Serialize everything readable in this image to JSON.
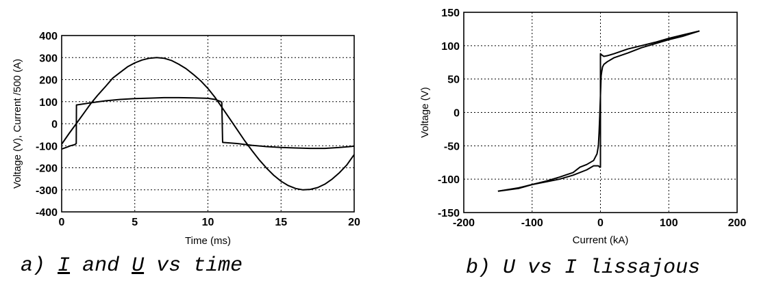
{
  "chart_data": [
    {
      "type": "line",
      "title": "",
      "caption": {
        "prefix": "a)",
        "var1": "I",
        "mid": "and",
        "var2": "U",
        "suffix": "vs time"
      },
      "xlabel": "Time (ms)",
      "ylabel": "Voltage (V), Current /500 (A)",
      "xlim": [
        0,
        20
      ],
      "ylim": [
        -400,
        400
      ],
      "xticks": [
        0,
        5,
        10,
        15,
        20
      ],
      "yticks": [
        -400,
        -300,
        -200,
        -100,
        0,
        100,
        200,
        300,
        400
      ],
      "grid": true,
      "series": [
        {
          "x": [
            0,
            0.5,
            1,
            1.5,
            2,
            2.5,
            3,
            3.5,
            4,
            4.5,
            5,
            5.5,
            6,
            6.5,
            7,
            7.5,
            8,
            8.5,
            9,
            9.5,
            10,
            10.5,
            11,
            11.5,
            12,
            12.5,
            13,
            13.5,
            14,
            14.5,
            15,
            15.5,
            16,
            16.5,
            17,
            17.5,
            18,
            18.5,
            19,
            19.5,
            20
          ],
          "y": [
            -93,
            -45,
            0,
            46,
            92,
            132,
            169,
            207,
            233,
            258,
            276,
            289,
            297,
            300,
            297,
            287,
            270,
            250,
            224,
            195,
            160,
            118,
            70,
            22,
            -27,
            -76,
            -121,
            -163,
            -201,
            -234,
            -261,
            -281,
            -294,
            -300,
            -298,
            -290,
            -274,
            -251,
            -222,
            -187,
            -140
          ]
        },
        {
          "x": [
            0,
            0.3,
            0.6,
            0.9,
            1.0,
            1.01,
            2,
            3,
            4,
            5,
            6,
            7,
            8,
            9,
            10,
            10.5,
            10.9,
            10.95,
            11.0,
            11.01,
            12,
            13,
            14,
            15,
            16,
            17,
            18,
            19,
            20
          ],
          "y": [
            -115,
            -108,
            -100,
            -95,
            -90,
            85,
            95,
            104,
            110,
            114,
            116,
            118,
            118,
            117,
            115,
            110,
            100,
            95,
            -75,
            -85,
            -90,
            -98,
            -104,
            -108,
            -110,
            -112,
            -112,
            -108,
            -102
          ]
        }
      ]
    },
    {
      "type": "line",
      "title": "",
      "caption": {
        "prefix": "b)",
        "text": "U vs I lissajous"
      },
      "xlabel": "Current (kA)",
      "ylabel": "Voltage (V)",
      "xlim": [
        -200,
        200
      ],
      "ylim": [
        -150,
        150
      ],
      "xticks": [
        -200,
        -100,
        0,
        100,
        200
      ],
      "yticks": [
        -150,
        -100,
        -50,
        0,
        50,
        100,
        150
      ],
      "grid": true,
      "series": [
        {
          "x": [
            -150,
            -120,
            -100,
            -80,
            -60,
            -40,
            -30,
            -20,
            -10,
            -5,
            -3,
            -2,
            -1,
            0,
            1,
            2,
            3,
            5,
            10,
            20,
            40,
            60,
            80,
            100,
            120,
            145
          ],
          "y": [
            -118,
            -114,
            -108,
            -103,
            -97,
            -90,
            -82,
            -78,
            -72,
            -62,
            -50,
            -30,
            -5,
            25,
            55,
            62,
            68,
            72,
            76,
            82,
            89,
            97,
            103,
            109,
            114,
            122
          ]
        },
        {
          "x": [
            145,
            120,
            100,
            80,
            60,
            40,
            20,
            10,
            5,
            2,
            0,
            0,
            0,
            -1,
            -3,
            -10,
            -20,
            -40,
            -60,
            -80,
            -100,
            -120,
            -150
          ],
          "y": [
            122,
            116,
            111,
            105,
            100,
            95,
            88,
            85,
            84,
            86,
            88,
            30,
            -82,
            -82,
            -80,
            -80,
            -86,
            -94,
            -100,
            -104,
            -108,
            -113,
            -118
          ]
        }
      ]
    }
  ]
}
